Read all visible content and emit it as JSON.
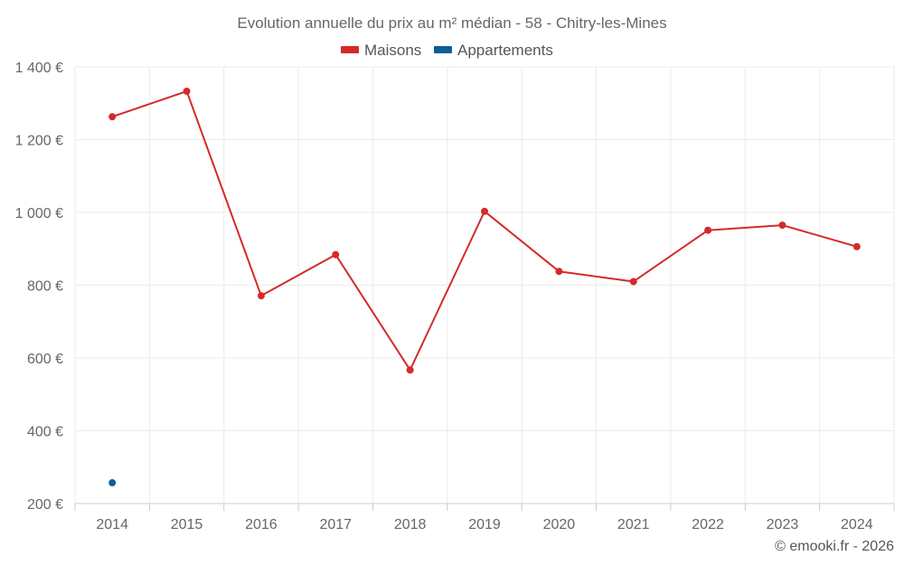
{
  "chart_data": {
    "type": "line",
    "title": "Evolution annuelle du prix au m² médian - 58 - Chitry-les-Mines",
    "categories": [
      "2014",
      "2015",
      "2016",
      "2017",
      "2018",
      "2019",
      "2020",
      "2021",
      "2022",
      "2023",
      "2024"
    ],
    "series": [
      {
        "name": "Maisons",
        "color": "#d42a2a",
        "values": [
          1263,
          1333,
          771,
          884,
          567,
          1003,
          838,
          810,
          951,
          965,
          906
        ]
      },
      {
        "name": "Appartements",
        "color": "#0d5e98",
        "values": [
          257,
          null,
          null,
          null,
          null,
          null,
          null,
          null,
          null,
          null,
          null
        ]
      }
    ],
    "ylim": [
      200,
      1400
    ],
    "yticks": [
      200,
      400,
      600,
      800,
      1000,
      1200,
      1400
    ],
    "ytick_labels": [
      "200 €",
      "400 €",
      "600 €",
      "800 €",
      "1 000 €",
      "1 200 €",
      "1 400 €"
    ],
    "xlabel": "",
    "ylabel": "",
    "grid": true,
    "legend_position": "top-center"
  },
  "credit": "© emooki.fr - 2026"
}
